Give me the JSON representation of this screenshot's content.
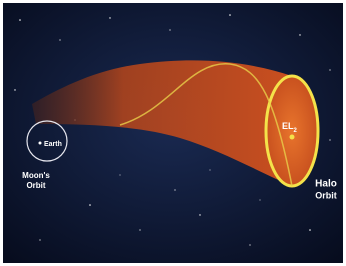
{
  "labels": {
    "earth": "Earth",
    "moons_orbit": [
      "Moon's",
      "Orbit"
    ],
    "el2": {
      "main": "EL",
      "sub": "2"
    },
    "halo_orbit": [
      "Halo",
      "Orbit"
    ]
  }
}
